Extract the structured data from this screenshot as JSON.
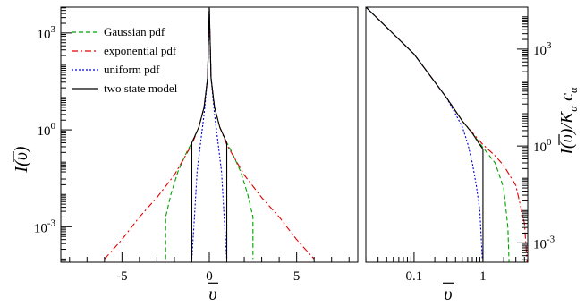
{
  "chart_data": [
    {
      "type": "line",
      "panel": "left",
      "xlabel": "ῡ",
      "ylabel": "I(ῡ)",
      "xlim": [
        -8.5,
        8.5
      ],
      "ylim_log10": [
        -4.1,
        3.8
      ],
      "log_y": true,
      "grid": false,
      "legend_placement": "top-left",
      "xticks": [
        {
          "value": -5,
          "label": "-5"
        },
        {
          "value": 0,
          "label": "0"
        },
        {
          "value": 5,
          "label": "5"
        }
      ],
      "yticks": [
        {
          "value": 1000,
          "label": "10^3"
        },
        {
          "value": 1,
          "label": "10^0"
        },
        {
          "value": 0.001,
          "label": "10^-3"
        }
      ],
      "series": [
        {
          "name": "Gaussian  pdf",
          "color": "#00a000",
          "dash": "5,3",
          "points": [
            [
              -2.5,
              0.0001
            ],
            [
              -2.5,
              0.002
            ],
            [
              -2.2,
              0.01
            ],
            [
              -1.8,
              0.05
            ],
            [
              -1.3,
              0.2
            ],
            [
              -1.0,
              0.4
            ],
            [
              -0.6,
              1.2
            ],
            [
              -0.3,
              5
            ],
            [
              -0.1,
              40
            ],
            [
              0,
              6000
            ],
            [
              0.1,
              40
            ],
            [
              0.3,
              5
            ],
            [
              0.6,
              1.2
            ],
            [
              1.0,
              0.4
            ],
            [
              1.3,
              0.2
            ],
            [
              1.8,
              0.05
            ],
            [
              2.2,
              0.01
            ],
            [
              2.5,
              0.002
            ],
            [
              2.5,
              0.0001
            ]
          ]
        },
        {
          "name": "exponential  pdf",
          "color": "#e00000",
          "dash": "7,3,2,3",
          "points": [
            [
              -6.0,
              0.0001
            ],
            [
              -5.0,
              0.0004
            ],
            [
              -4.0,
              0.002
            ],
            [
              -3.0,
              0.008
            ],
            [
              -2.0,
              0.04
            ],
            [
              -1.0,
              0.35
            ],
            [
              -0.6,
              1.2
            ],
            [
              -0.3,
              5
            ],
            [
              -0.1,
              40
            ],
            [
              0,
              6000
            ],
            [
              0.1,
              40
            ],
            [
              0.3,
              5
            ],
            [
              0.6,
              1.2
            ],
            [
              1.0,
              0.35
            ],
            [
              2.0,
              0.04
            ],
            [
              3.0,
              0.008
            ],
            [
              4.0,
              0.002
            ],
            [
              5.0,
              0.0004
            ],
            [
              6.0,
              0.0001
            ]
          ]
        },
        {
          "name": "uniform pdf",
          "color": "#0000d0",
          "dash": "2,2",
          "points": [
            [
              -1.0,
              0.0001
            ],
            [
              -0.85,
              0.002
            ],
            [
              -0.7,
              0.05
            ],
            [
              -0.5,
              0.4
            ],
            [
              -0.3,
              3
            ],
            [
              -0.1,
              40
            ],
            [
              0,
              6000
            ],
            [
              0.1,
              40
            ],
            [
              0.3,
              3
            ],
            [
              0.5,
              0.4
            ],
            [
              0.7,
              0.05
            ],
            [
              0.85,
              0.002
            ],
            [
              1.0,
              0.0001
            ]
          ]
        },
        {
          "name": "two state model",
          "color": "#000000",
          "dash": "",
          "points": [
            [
              -1.0,
              0.0001
            ],
            [
              -1.0,
              0.4
            ],
            [
              -0.6,
              1.2
            ],
            [
              -0.3,
              5
            ],
            [
              -0.1,
              40
            ],
            [
              0,
              6000
            ],
            [
              0.1,
              40
            ],
            [
              0.3,
              5
            ],
            [
              0.6,
              1.2
            ],
            [
              1.0,
              0.4
            ],
            [
              1.0,
              0.0001
            ]
          ]
        }
      ]
    },
    {
      "type": "line",
      "panel": "right",
      "xlabel": "ῡ",
      "ylabel": "I(ῡ)/K_α c_α",
      "xlim_log10": [
        -1.7,
        0.65
      ],
      "ylim_log10": [
        -3.6,
        4.3
      ],
      "log_x": true,
      "log_y": true,
      "grid": false,
      "xticks": [
        {
          "value": 0.1,
          "label": "0.1"
        },
        {
          "value": 1,
          "label": "1"
        }
      ],
      "yticks": [
        {
          "value": 1000,
          "label": "10^3"
        },
        {
          "value": 1,
          "label": "10^0"
        },
        {
          "value": 0.001,
          "label": "10^-3"
        }
      ],
      "series": [
        {
          "name": "Gaussian  pdf",
          "color": "#00a000",
          "dash": "5,3",
          "points": [
            [
              0.02,
              20000
            ],
            [
              0.1,
              700
            ],
            [
              0.3,
              30
            ],
            [
              0.5,
              6
            ],
            [
              0.7,
              2.5
            ],
            [
              1.0,
              0.9
            ],
            [
              1.5,
              0.3
            ],
            [
              2.0,
              0.05
            ],
            [
              2.3,
              0.003
            ],
            [
              2.4,
              0.0002
            ]
          ]
        },
        {
          "name": "exponential  pdf",
          "color": "#e00000",
          "dash": "7,3,2,3",
          "points": [
            [
              0.02,
              20000
            ],
            [
              0.1,
              700
            ],
            [
              0.3,
              30
            ],
            [
              0.5,
              6
            ],
            [
              0.7,
              2.6
            ],
            [
              1.0,
              1.1
            ],
            [
              1.5,
              0.5
            ],
            [
              2.0,
              0.25
            ],
            [
              3.0,
              0.06
            ],
            [
              4.0,
              0.004
            ],
            [
              4.4,
              0.0002
            ]
          ]
        },
        {
          "name": "uniform pdf",
          "color": "#0000d0",
          "dash": "2,2",
          "points": [
            [
              0.02,
              20000
            ],
            [
              0.1,
              700
            ],
            [
              0.3,
              30
            ],
            [
              0.5,
              4
            ],
            [
              0.6,
              1.2
            ],
            [
              0.7,
              0.3
            ],
            [
              0.8,
              0.06
            ],
            [
              0.9,
              0.01
            ],
            [
              0.98,
              0.0003
            ]
          ]
        },
        {
          "name": "two state model",
          "color": "#000000",
          "dash": "",
          "points": [
            [
              0.02,
              20000
            ],
            [
              0.1,
              700
            ],
            [
              0.3,
              30
            ],
            [
              0.5,
              6
            ],
            [
              0.7,
              2.5
            ],
            [
              0.9,
              1.1
            ],
            [
              1.0,
              0.8
            ],
            [
              1.0,
              0.0002
            ]
          ]
        }
      ]
    }
  ]
}
